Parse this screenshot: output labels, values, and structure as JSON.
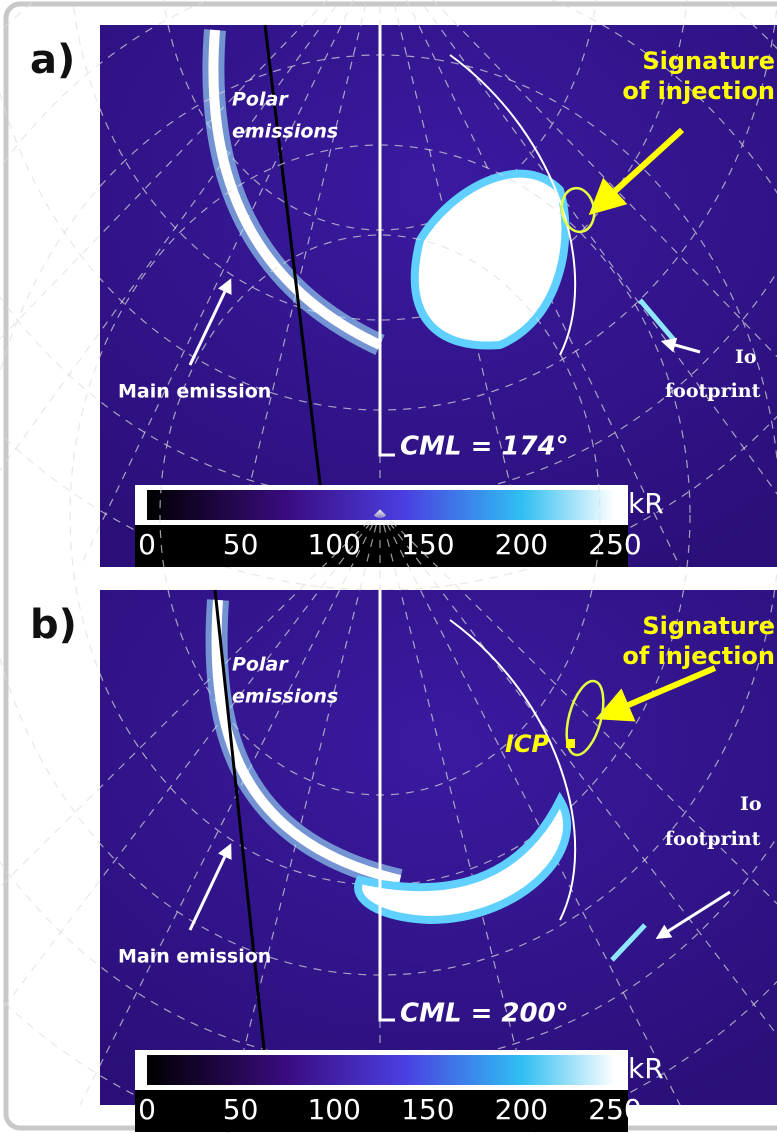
{
  "panels": [
    {
      "label": "a)",
      "signature": [
        "Signature",
        "of injection"
      ],
      "polar": [
        "Polar",
        "emissions"
      ],
      "main": "Main emission",
      "io": [
        "Io",
        "footprint"
      ],
      "cml": "CML = 174°",
      "colorbar": {
        "unit": "kR",
        "ticks": [
          0,
          50,
          100,
          150,
          200,
          250
        ]
      }
    },
    {
      "label": "b)",
      "signature": [
        "Signature",
        "of injection"
      ],
      "polar": [
        "Polar",
        "emissions"
      ],
      "main": "Main emission",
      "io": [
        "Io",
        "footprint"
      ],
      "icp": "ICP",
      "cml": "CML = 200°",
      "colorbar": {
        "unit": "kR",
        "ticks": [
          0,
          50,
          100,
          150,
          200,
          250
        ]
      }
    }
  ]
}
